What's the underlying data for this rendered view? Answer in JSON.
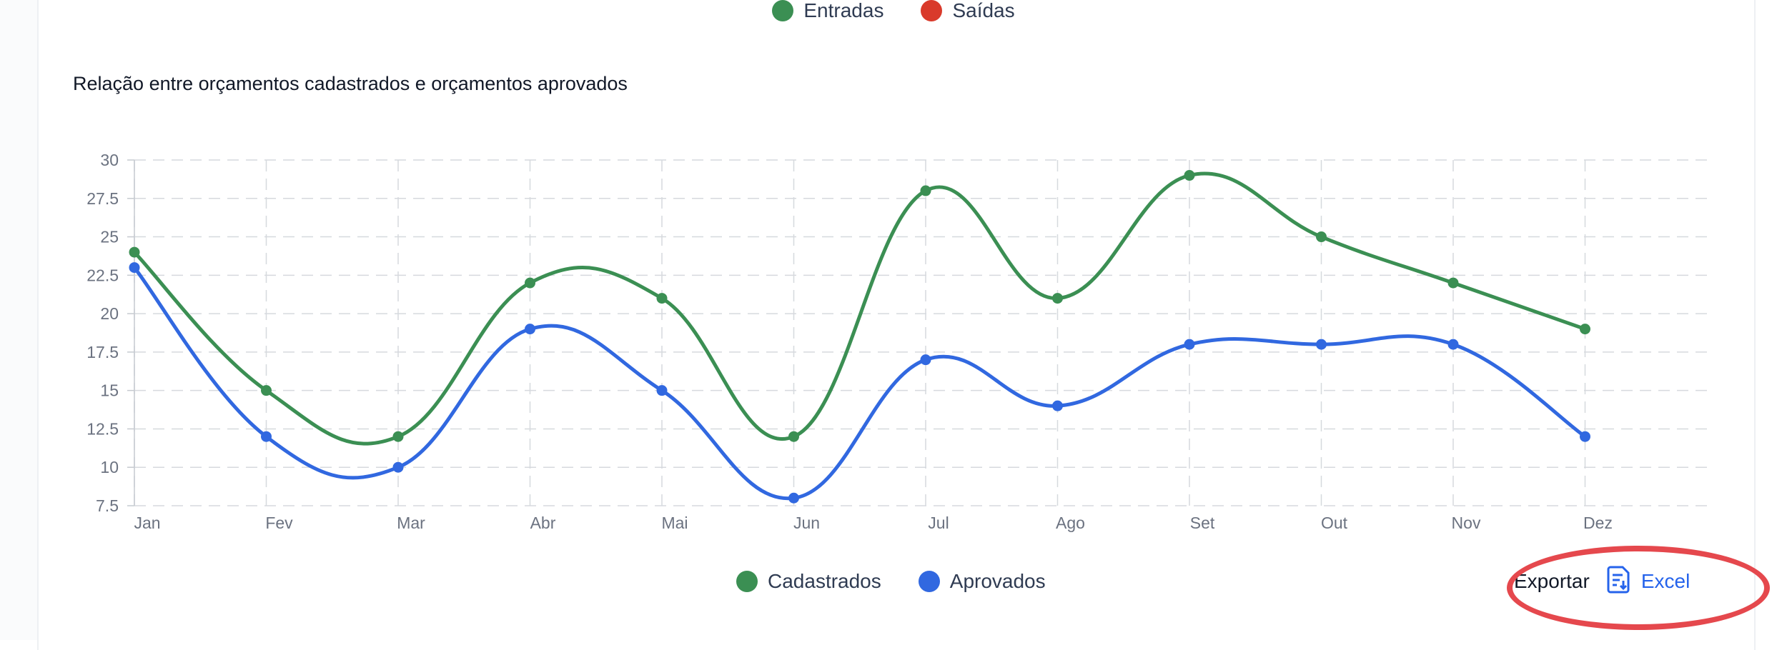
{
  "top_legend": {
    "items": [
      {
        "label": "Entradas",
        "color": "#3b8f53"
      },
      {
        "label": "Saídas",
        "color": "#d93a2b"
      }
    ]
  },
  "chart_data": {
    "type": "line",
    "title": "Relação entre orçamentos cadastrados e orçamentos aprovados",
    "categories": [
      "Jan",
      "Fev",
      "Mar",
      "Abr",
      "Mai",
      "Jun",
      "Jul",
      "Ago",
      "Set",
      "Out",
      "Nov",
      "Dez"
    ],
    "series": [
      {
        "name": "Cadastrados",
        "color": "#3b8f53",
        "values": [
          24,
          15,
          12,
          22,
          21,
          12,
          28,
          21,
          29,
          25,
          22,
          19
        ]
      },
      {
        "name": "Aprovados",
        "color": "#3168e0",
        "values": [
          23,
          12,
          10,
          19,
          15,
          8,
          17,
          14,
          18,
          18,
          18,
          12
        ]
      }
    ],
    "y_ticks": [
      "30",
      "27.5",
      "25",
      "22.5",
      "20",
      "17.5",
      "15",
      "12.5",
      "10",
      "7.5"
    ],
    "ylim": [
      7.5,
      30
    ],
    "grid": true,
    "legend_position": "bottom"
  },
  "export": {
    "label": "Exportar",
    "excel_label": "Excel",
    "highlight_color": "#e5484d"
  }
}
